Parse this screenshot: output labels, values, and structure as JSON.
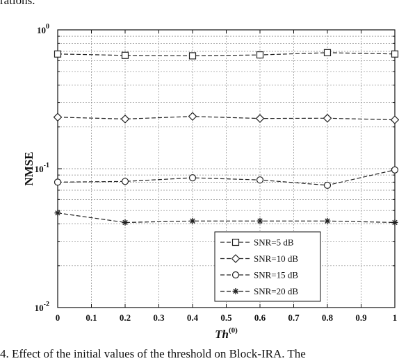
{
  "caption_top": "rations.",
  "caption_bottom": "4.   Effect of the initial values of the threshold on Block-IRA. The",
  "chart_data": {
    "type": "line",
    "xlabel": "Th",
    "xlabel_sup": "(0)",
    "ylabel": "NMSE",
    "x": [
      0,
      0.2,
      0.4,
      0.6,
      0.8,
      1
    ],
    "xlim": [
      0,
      1
    ],
    "ylim": [
      0.01,
      1
    ],
    "yscale": "log",
    "xticks": [
      "0",
      "0.1",
      "0.2",
      "0.3",
      "0.4",
      "0.5",
      "0.6",
      "0.7",
      "0.8",
      "0.9",
      "1"
    ],
    "yticks": [
      {
        "base": "10",
        "exp": "-2"
      },
      {
        "base": "10",
        "exp": "-1"
      },
      {
        "base": "10",
        "exp": "0"
      }
    ],
    "grid": true,
    "legend_position": "bottom-right",
    "series": [
      {
        "name": "SNR=5 dB",
        "marker": "square",
        "values": [
          0.67,
          0.655,
          0.65,
          0.66,
          0.685,
          0.67
        ]
      },
      {
        "name": "SNR=10 dB",
        "marker": "diamond",
        "values": [
          0.235,
          0.228,
          0.238,
          0.23,
          0.231,
          0.225
        ]
      },
      {
        "name": "SNR=15 dB",
        "marker": "circle",
        "values": [
          0.08,
          0.081,
          0.086,
          0.083,
          0.076,
          0.098
        ]
      },
      {
        "name": "SNR=20 dB",
        "marker": "star",
        "values": [
          0.048,
          0.041,
          0.042,
          0.042,
          0.042,
          0.041
        ]
      }
    ],
    "line_color": "#222222"
  }
}
